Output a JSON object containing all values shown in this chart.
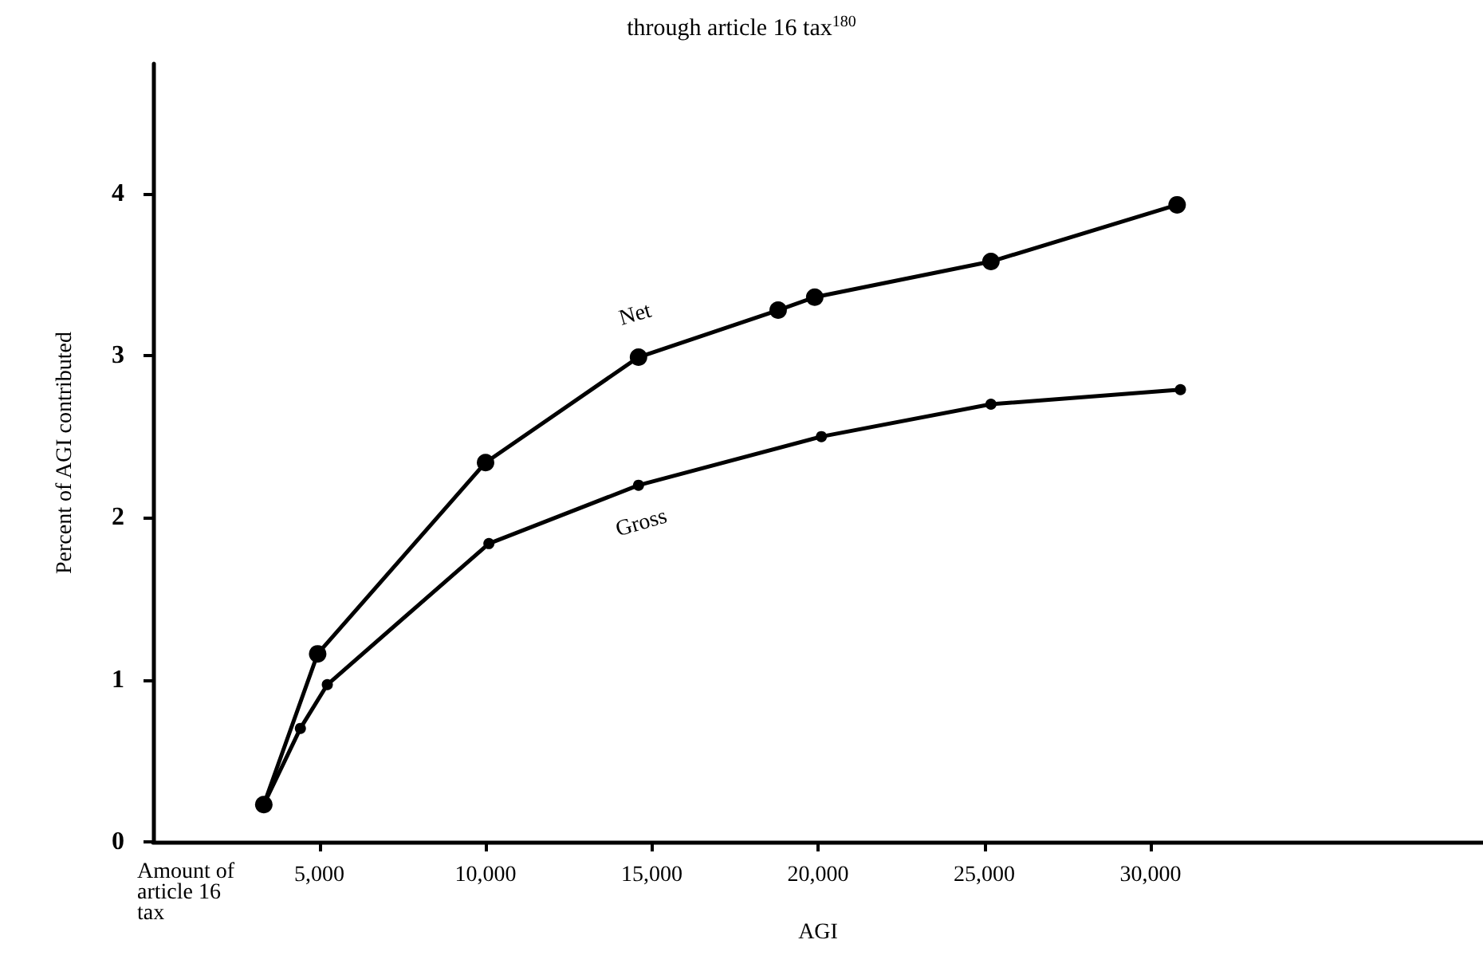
{
  "chart_data": {
    "type": "line",
    "title": "through article 16 tax$^{180}$",
    "xlabel": "AGI",
    "ylabel": "Percent of AGI contributed",
    "xlim": [
      0,
      40000
    ],
    "ylim": [
      0,
      4.8
    ],
    "xticks": [
      {
        "value": 5000,
        "label": "5,000"
      },
      {
        "value": 10000,
        "label": "10,000"
      },
      {
        "value": 15000,
        "label": "15,000"
      },
      {
        "value": 20000,
        "label": "20,000"
      },
      {
        "value": 25000,
        "label": "25,000"
      },
      {
        "value": 30000,
        "label": "30,000"
      }
    ],
    "yticks": [
      0,
      1,
      2,
      3,
      4
    ],
    "series": [
      {
        "name": "Net",
        "color": "#000000",
        "x": [
          3330,
          4950,
          10000,
          14600,
          18800,
          19900,
          25200,
          30800
        ],
        "values": [
          0.23,
          1.16,
          2.34,
          2.99,
          3.28,
          3.36,
          3.58,
          3.93
        ]
      },
      {
        "name": "Gross",
        "color": "#000000",
        "x": [
          3330,
          4430,
          5240,
          10100,
          14600,
          20100,
          25200,
          30900
        ],
        "values": [
          0.23,
          0.7,
          0.97,
          1.84,
          2.2,
          2.5,
          2.7,
          2.79
        ]
      }
    ],
    "annotations": [
      "Amount of article 16 tax"
    ],
    "marker": "circle",
    "line_style": "solid",
    "grid": false,
    "legend": false
  }
}
